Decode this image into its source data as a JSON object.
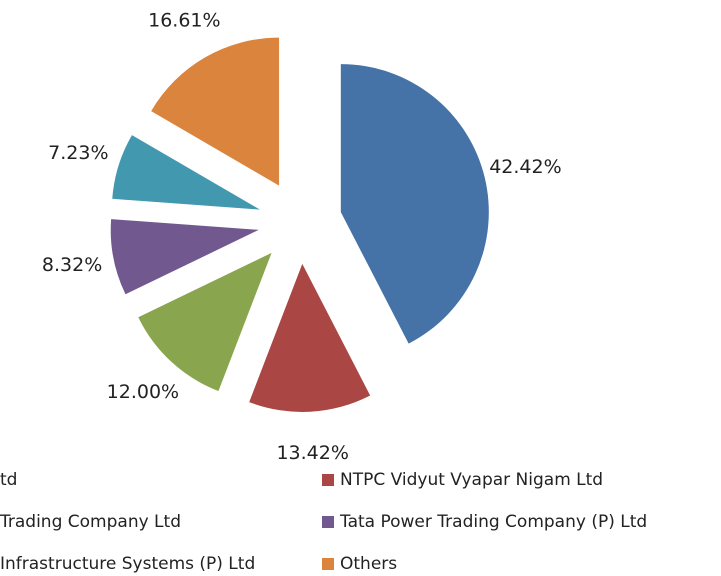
{
  "chart_data": {
    "type": "pie",
    "categories": [
      "td",
      "NTPC Vidyut Vyapar Nigam Ltd",
      "Trading Company Ltd",
      "Tata Power Trading Company (P) Ltd",
      "Infrastructure Systems (P) Ltd",
      "Others"
    ],
    "values": [
      42.42,
      13.42,
      12.0,
      8.32,
      7.23,
      16.61
    ],
    "value_labels": [
      "42.42%",
      "13.42%",
      "12.00%",
      "8.32%",
      "7.23%",
      "16.61%"
    ],
    "colors": [
      "#4572a7",
      "#aa4643",
      "#89a54e",
      "#71588f",
      "#4198af",
      "#db843d"
    ],
    "exploded": true,
    "legend": "bottom"
  }
}
